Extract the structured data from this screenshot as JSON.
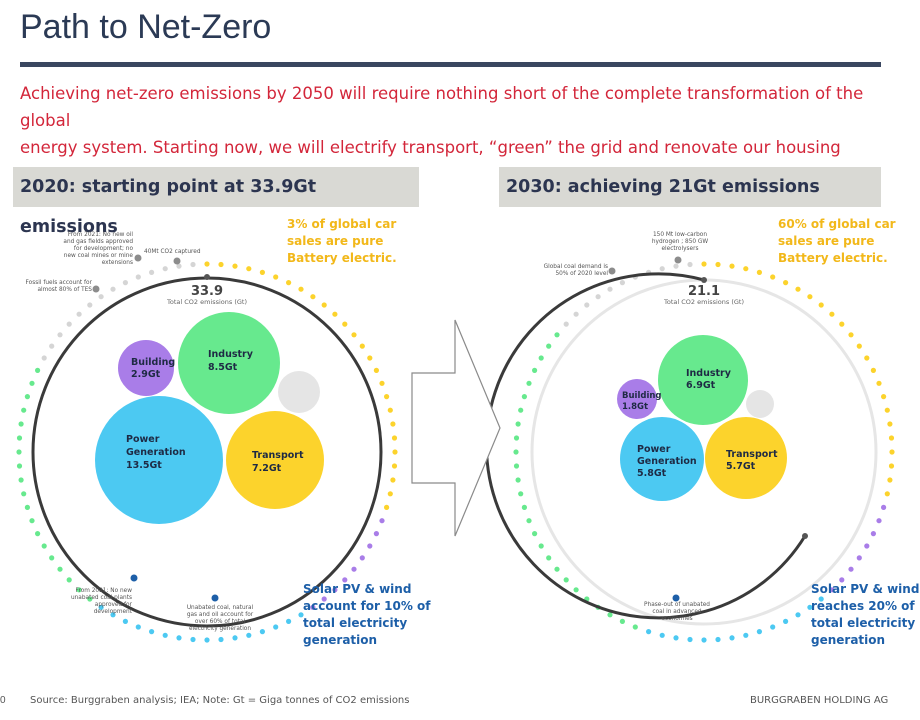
{
  "title": "Path to Net-Zero",
  "subtitle_line1": "Achieving net-zero emissions by 2050 will require nothing short of the complete transformation of the global",
  "subtitle_line2": "energy system. Starting now, we will electrify transport, “green” the grid and renovate our housing stocks.",
  "left": {
    "header": "2020: starting point at 33.9Gt emissions",
    "total_value": "33.9",
    "total_label": "Total CO2 emissions (Gt)",
    "bubbles": [
      {
        "name": "Building",
        "value": "2.9Gt",
        "color": "#a97de8"
      },
      {
        "name": "Industry",
        "value": "8.5Gt",
        "color": "#67e98e"
      },
      {
        "name_line1": "Power",
        "name_line2": "Generation",
        "value": "13.5Gt",
        "color": "#4cc9f2"
      },
      {
        "name": "Transport",
        "value": "7.2Gt",
        "color": "#fcd32c"
      }
    ],
    "callout_top_line1": "3% of global car",
    "callout_top_line2": "sales are pure",
    "callout_top_line3": "Battery electric.",
    "callout_bottom_line1": "Solar PV & wind",
    "callout_bottom_line2": "account for 10% of",
    "callout_bottom_line3": "total electricity",
    "callout_bottom_line4": "generation",
    "ann_oil_1": "From 2021: No new oil",
    "ann_oil_2": "and gas fields approved",
    "ann_oil_3": "for development; no",
    "ann_oil_4": "new coal mines or mine",
    "ann_oil_5": "extensions",
    "ann_co2": "40Mt CO2 captured",
    "ann_fossil_1": "Fossil fuels account for",
    "ann_fossil_2": "almost 80% of TES",
    "ann_coal_1": "From 2021: No new",
    "ann_coal_2": "unabated coal plants",
    "ann_coal_3": "approved for",
    "ann_coal_4": "development",
    "ann_unabated_1": "Unabated coal, natural",
    "ann_unabated_2": "gas and oil account for",
    "ann_unabated_3": "over 60% of total",
    "ann_unabated_4": "electricity generation"
  },
  "right": {
    "header": "2030: achieving 21Gt emissions",
    "total_value": "21.1",
    "total_label": "Total CO2 emissions (Gt)",
    "bubbles": [
      {
        "name": "Building",
        "value": "1.8Gt",
        "color": "#a97de8"
      },
      {
        "name": "Industry",
        "value": "6.9Gt",
        "color": "#67e98e"
      },
      {
        "name_line1": "Power",
        "name_line2": "Generation",
        "value": "5.8Gt",
        "color": "#4cc9f2"
      },
      {
        "name": "Transport",
        "value": "5.7Gt",
        "color": "#fcd32c"
      }
    ],
    "callout_top_line1": "60% of global car",
    "callout_top_line2": "sales are pure",
    "callout_top_line3": "Battery electric.",
    "callout_bottom_line1": "Solar PV & wind",
    "callout_bottom_line2": "reaches 20% of",
    "callout_bottom_line3": "total electricity",
    "callout_bottom_line4": "generation",
    "ann_h2_1": "150 Mt low-carbon",
    "ann_h2_2": "hydrogen ; 850 GW",
    "ann_h2_3": "electrolysers",
    "ann_coal_1": "Global coal demand is",
    "ann_coal_2": "50% of 2020 level",
    "ann_phase_1": "Phase-out of unabated",
    "ann_phase_2": "coal in advanced",
    "ann_phase_3": "economies"
  },
  "footer": {
    "page": "0",
    "source": "Source: Burggraben analysis; IEA; Note: Gt = Giga tonnes of CO2 emissions",
    "company": "BURGGRABEN HOLDING AG"
  },
  "colors": {
    "title": "#2b3a55",
    "subtitle": "#d3263a",
    "dot_green": "#67e98e",
    "dot_yellow": "#fcd32c",
    "dot_purple": "#a97de8",
    "dot_blue": "#4cc9f2",
    "dot_grey": "#d5d5d5"
  }
}
